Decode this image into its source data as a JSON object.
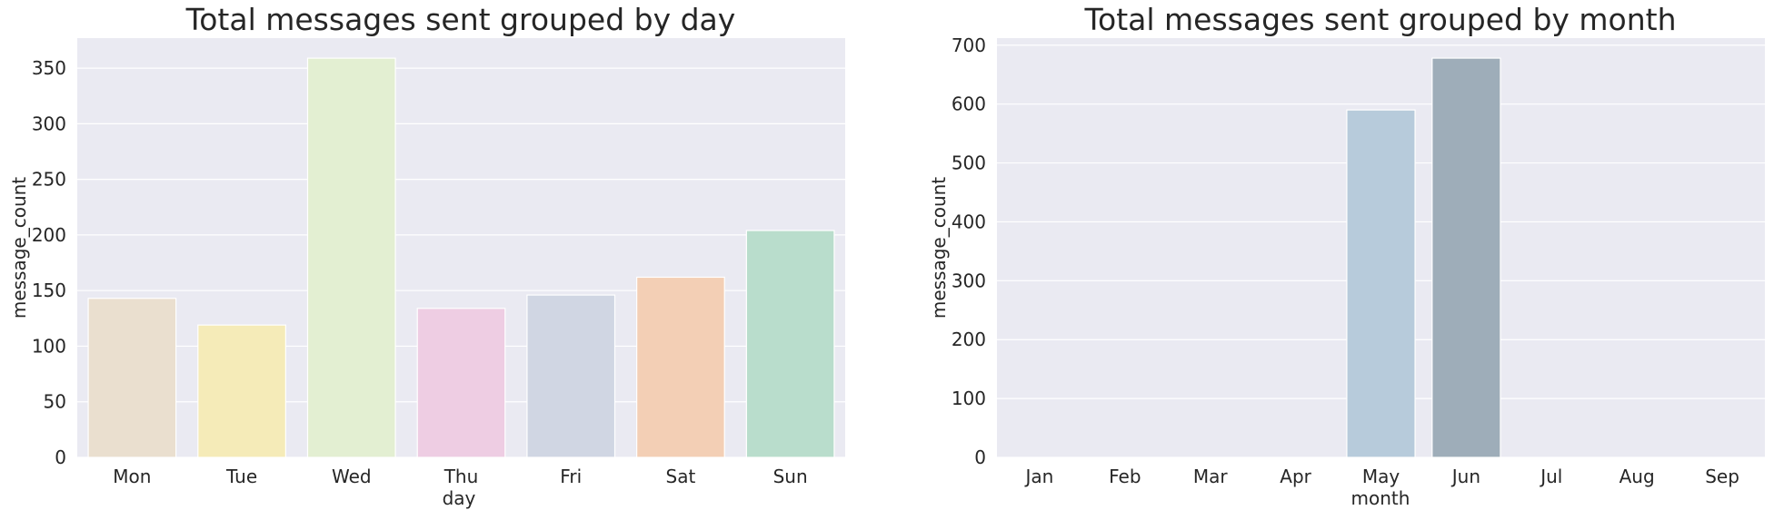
{
  "chart_data": [
    {
      "type": "bar",
      "title": "Total messages sent grouped by day",
      "xlabel": "day",
      "ylabel": "message_count",
      "categories": [
        "Mon",
        "Tue",
        "Wed",
        "Thu",
        "Fri",
        "Sat",
        "Sun"
      ],
      "values": [
        143,
        119,
        359,
        134,
        146,
        162,
        204
      ],
      "colors": [
        "#eadfcf",
        "#f5ebb8",
        "#e3efd2",
        "#eecde3",
        "#d0d6e3",
        "#f3cfb5",
        "#b9ddcc"
      ],
      "yticks": [
        0,
        50,
        100,
        150,
        200,
        250,
        300,
        350
      ],
      "ylim": [
        0,
        377
      ],
      "grid": true
    },
    {
      "type": "bar",
      "title": "Total messages sent grouped by month",
      "xlabel": "month",
      "ylabel": "message_count",
      "categories": [
        "Jan",
        "Feb",
        "Mar",
        "Apr",
        "May",
        "Jun",
        "Jul",
        "Aug",
        "Sep"
      ],
      "values": [
        0,
        0,
        0,
        0,
        590,
        678,
        0,
        0,
        0
      ],
      "colors": [
        "#eadfcf",
        "#eadfcf",
        "#eadfcf",
        "#eadfcf",
        "#b7cbdb",
        "#9eadb9",
        "#eadfcf",
        "#eadfcf",
        "#eadfcf"
      ],
      "yticks": [
        0,
        100,
        200,
        300,
        400,
        500,
        600,
        700
      ],
      "ylim": [
        0,
        712
      ],
      "grid": true
    }
  ]
}
